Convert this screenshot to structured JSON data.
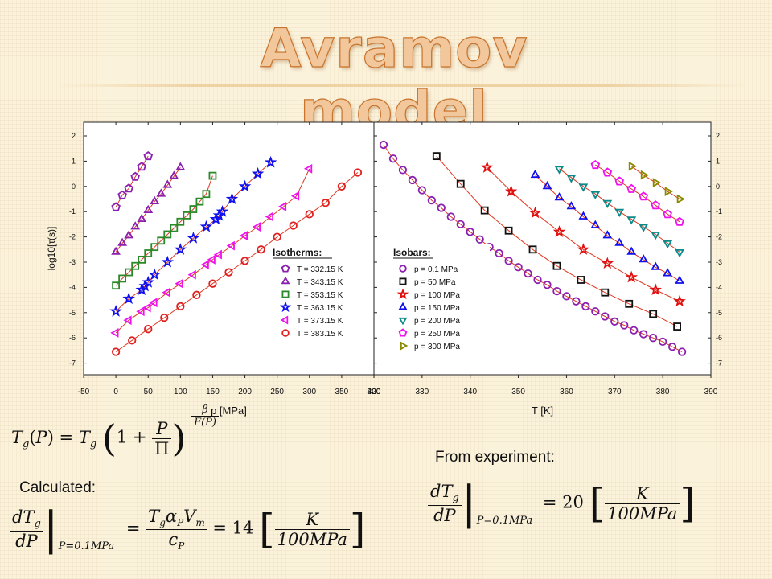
{
  "slide": {
    "title": "Avramov model",
    "calculated_label": "Calculated:",
    "experiment_label": "From experiment:",
    "calc_value": "14",
    "exp_value": "20",
    "unit_num": "K",
    "unit_den": "100MPa",
    "eval_at": "P=0.1MPa"
  },
  "colors": {
    "title_fill": "#f1c79b",
    "title_stroke": "#c8742d",
    "fit_line": "#e0371f",
    "series": [
      "#8a1fb0",
      "#111111",
      "#e01010",
      "#1010ee",
      "#0a8a8a",
      "#ee10ee",
      "#8a8a00",
      "#e02020"
    ]
  },
  "chart_data": [
    {
      "type": "scatter",
      "title": "",
      "xlabel": "p [MPa]",
      "ylabel": "log10[τ(s)]",
      "xlim": [
        -50,
        400
      ],
      "ylim": [
        -7.5,
        2.5
      ],
      "xticks": [
        -50,
        0,
        50,
        100,
        150,
        200,
        250,
        300,
        350,
        400
      ],
      "yticks": [
        2,
        1,
        0,
        -1,
        -2,
        -3,
        -4,
        -5,
        -6,
        -7
      ],
      "legend_title": "Isotherms:",
      "legend_position": "lower-right",
      "series": [
        {
          "name": "T = 332.15 K",
          "marker": "pentagon",
          "color": "#8a1fb0",
          "x": [
            0,
            10,
            20,
            30,
            40,
            50
          ],
          "y": [
            -0.82,
            -0.35,
            -0.08,
            0.38,
            0.78,
            1.2
          ]
        },
        {
          "name": "T = 343.15 K",
          "marker": "triangle-up",
          "color": "#8a1fb0",
          "x": [
            0,
            10,
            20,
            30,
            40,
            50,
            60,
            70,
            80,
            90,
            100
          ],
          "y": [
            -2.6,
            -2.25,
            -1.95,
            -1.6,
            -1.3,
            -0.95,
            -0.6,
            -0.3,
            0.05,
            0.4,
            0.75
          ]
        },
        {
          "name": "T = 353.15 K",
          "marker": "square",
          "color": "#2a8a2a",
          "x": [
            0,
            10,
            20,
            30,
            40,
            50,
            60,
            70,
            80,
            90,
            100,
            110,
            120,
            130,
            140,
            150
          ],
          "y": [
            -3.93,
            -3.65,
            -3.4,
            -3.15,
            -2.9,
            -2.65,
            -2.4,
            -2.15,
            -1.9,
            -1.65,
            -1.4,
            -1.15,
            -0.9,
            -0.6,
            -0.3,
            0.42
          ]
        },
        {
          "name": "T = 363.15 K",
          "marker": "star",
          "color": "#1010ee",
          "x": [
            0,
            20,
            40,
            45,
            50,
            60,
            80,
            100,
            120,
            140,
            155,
            160,
            165,
            180,
            200,
            220,
            240
          ],
          "y": [
            -4.95,
            -4.45,
            -4.1,
            -3.95,
            -3.8,
            -3.5,
            -3.0,
            -2.5,
            -2.05,
            -1.6,
            -1.3,
            -1.15,
            -1.0,
            -0.5,
            0.0,
            0.5,
            0.95
          ]
        },
        {
          "name": "T = 373.15 K",
          "marker": "triangle-left",
          "color": "#ee10ee",
          "x": [
            0,
            20,
            40,
            50,
            60,
            80,
            100,
            120,
            140,
            150,
            160,
            180,
            200,
            220,
            240,
            260,
            280,
            300
          ],
          "y": [
            -5.8,
            -5.3,
            -4.95,
            -4.8,
            -4.6,
            -4.2,
            -3.85,
            -3.5,
            -3.1,
            -2.9,
            -2.7,
            -2.35,
            -1.95,
            -1.6,
            -1.2,
            -0.8,
            -0.38,
            0.7
          ]
        },
        {
          "name": "T = 383.15 K",
          "marker": "circle",
          "color": "#e02020",
          "x": [
            0,
            25,
            50,
            75,
            100,
            125,
            150,
            175,
            200,
            225,
            250,
            275,
            300,
            325,
            350,
            375
          ],
          "y": [
            -6.55,
            -6.1,
            -5.65,
            -5.2,
            -4.75,
            -4.3,
            -3.85,
            -3.4,
            -2.95,
            -2.5,
            -2.0,
            -1.55,
            -1.1,
            -0.65,
            0.0,
            0.55
          ]
        }
      ]
    },
    {
      "type": "scatter",
      "title": "",
      "xlabel": "T [K]",
      "ylabel": "",
      "xlim": [
        320,
        390
      ],
      "ylim": [
        -7.5,
        2.5
      ],
      "xticks": [
        320,
        330,
        340,
        350,
        360,
        370,
        380,
        390
      ],
      "yticks": [
        2,
        1,
        0,
        -1,
        -2,
        -3,
        -4,
        -5,
        -6,
        -7
      ],
      "legend_title": "Isobars:",
      "legend_position": "lower-left",
      "series": [
        {
          "name": "p = 0.1 MPa",
          "marker": "circle",
          "color": "#8a1fb0",
          "x": [
            322,
            324,
            326,
            328,
            330,
            332,
            334,
            336,
            338,
            340,
            342,
            344,
            346,
            348,
            350,
            352,
            354,
            356,
            358,
            360,
            362,
            364,
            366,
            368,
            370,
            372,
            374,
            376,
            378,
            380,
            382,
            384
          ],
          "y": [
            1.65,
            1.1,
            0.65,
            0.25,
            -0.15,
            -0.55,
            -0.85,
            -1.2,
            -1.5,
            -1.8,
            -2.1,
            -2.4,
            -2.65,
            -2.95,
            -3.2,
            -3.45,
            -3.7,
            -3.9,
            -4.15,
            -4.35,
            -4.55,
            -4.75,
            -4.95,
            -5.15,
            -5.35,
            -5.5,
            -5.7,
            -5.85,
            -6.0,
            -6.15,
            -6.35,
            -6.55
          ]
        },
        {
          "name": "p = 50 MPa",
          "marker": "square",
          "color": "#111111",
          "x": [
            333,
            338,
            343,
            348,
            353,
            358,
            363,
            368,
            373,
            378,
            383
          ],
          "y": [
            1.2,
            0.1,
            -0.95,
            -1.75,
            -2.5,
            -3.15,
            -3.7,
            -4.2,
            -4.65,
            -5.05,
            -5.55
          ]
        },
        {
          "name": "p = 100 MPa",
          "marker": "star",
          "color": "#e01010",
          "x": [
            343.5,
            348.5,
            353.5,
            358.5,
            363.5,
            368.5,
            373.5,
            378.5,
            383.5
          ],
          "y": [
            0.75,
            -0.2,
            -1.05,
            -1.8,
            -2.5,
            -3.05,
            -3.6,
            -4.1,
            -4.55
          ]
        },
        {
          "name": "p = 150 MPa",
          "marker": "triangle-up",
          "color": "#1010ee",
          "x": [
            353.5,
            356,
            358.5,
            361,
            363.5,
            366,
            368.5,
            371,
            373.5,
            376,
            378.5,
            381,
            383.5
          ],
          "y": [
            0.45,
            0.0,
            -0.45,
            -0.8,
            -1.2,
            -1.55,
            -1.95,
            -2.25,
            -2.6,
            -2.9,
            -3.2,
            -3.45,
            -3.75
          ]
        },
        {
          "name": "p = 200 MPa",
          "marker": "triangle-down",
          "color": "#0a8a8a",
          "x": [
            358.5,
            361,
            363.5,
            366,
            368.5,
            371,
            373.5,
            376,
            378.5,
            381,
            383.5
          ],
          "y": [
            0.7,
            0.35,
            0.0,
            -0.3,
            -0.65,
            -1.0,
            -1.3,
            -1.6,
            -1.9,
            -2.25,
            -2.6
          ]
        },
        {
          "name": "p = 250 MPa",
          "marker": "pentagon",
          "color": "#ee10ee",
          "x": [
            366,
            368.5,
            371,
            373.5,
            376,
            378.5,
            381,
            383.5
          ],
          "y": [
            0.85,
            0.55,
            0.2,
            -0.1,
            -0.4,
            -0.75,
            -1.1,
            -1.4
          ]
        },
        {
          "name": "p = 300 MPa",
          "marker": "triangle-right",
          "color": "#8a8a00",
          "x": [
            373.5,
            376,
            378.5,
            381,
            383.5
          ],
          "y": [
            0.8,
            0.45,
            0.15,
            -0.2,
            -0.5
          ]
        }
      ]
    }
  ]
}
